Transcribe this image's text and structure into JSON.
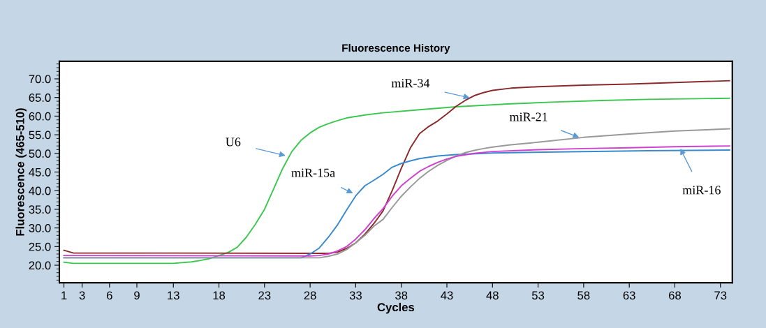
{
  "chart_data": {
    "type": "line",
    "title": "Fluorescence History",
    "xlabel": "Cycles",
    "ylabel": "Fluorescence (465-510)",
    "xlim": [
      0.5,
      74.3
    ],
    "ylim": [
      15.3,
      74.7
    ],
    "xticks": [
      1,
      3,
      6,
      9,
      13,
      18,
      23,
      28,
      33,
      38,
      43,
      48,
      53,
      58,
      63,
      68,
      73
    ],
    "yticks": [
      {
        "value": 20,
        "label": "20.0"
      },
      {
        "value": 25,
        "label": "25.0"
      },
      {
        "value": 30,
        "label": "30.0"
      },
      {
        "value": 35,
        "label": "35.0"
      },
      {
        "value": 40,
        "label": "40.0"
      },
      {
        "value": 45,
        "label": "45.0"
      },
      {
        "value": 50,
        "label": "50.0"
      },
      {
        "value": 55,
        "label": "55.0"
      },
      {
        "value": 60,
        "label": "60.0"
      },
      {
        "value": 65,
        "label": "65.0"
      },
      {
        "value": 70,
        "label": "70.0"
      }
    ],
    "grid": false,
    "series": [
      {
        "color": "#3cc850",
        "x": [
          1,
          2,
          13,
          15,
          16,
          17,
          18,
          19,
          20,
          21,
          22,
          23,
          24,
          25,
          26,
          27,
          28,
          29,
          30,
          31,
          32,
          34,
          36,
          40,
          44,
          50,
          55,
          60,
          65,
          74
        ],
        "values": [
          20.8,
          20.5,
          20.5,
          20.9,
          21.3,
          21.8,
          22.6,
          23.4,
          24.8,
          27.5,
          31,
          35,
          40.5,
          46,
          50.5,
          53.5,
          55.5,
          57,
          58,
          58.8,
          59.5,
          60.3,
          60.9,
          61.7,
          62.5,
          63.3,
          63.8,
          64.2,
          64.5,
          64.8
        ]
      },
      {
        "color": "#8b2a2a",
        "x": [
          1,
          2,
          30,
          31,
          32,
          33,
          34,
          35,
          36,
          37,
          38,
          39,
          40,
          41,
          42,
          43,
          44,
          45,
          46,
          47,
          48,
          50,
          53,
          58,
          63,
          68,
          74
        ],
        "values": [
          24,
          23.3,
          23.2,
          23.5,
          24.5,
          26,
          28.3,
          31.2,
          34.6,
          40,
          46,
          51.5,
          55.3,
          57.2,
          58.7,
          60.6,
          62.6,
          64.2,
          65.5,
          66.3,
          66.9,
          67.5,
          67.9,
          68.3,
          68.6,
          69,
          69.5
        ]
      },
      {
        "color": "#3a8ad0",
        "x": [
          1,
          27,
          28,
          29,
          30,
          31,
          32,
          33,
          34,
          35,
          36,
          37,
          38,
          39,
          40,
          42,
          44,
          48,
          55,
          65,
          74
        ],
        "values": [
          22,
          22,
          23,
          24.6,
          27.5,
          30.8,
          34.8,
          38.6,
          41.3,
          42.8,
          44.4,
          46.3,
          47.3,
          48,
          48.6,
          49.3,
          49.7,
          50.1,
          50.4,
          50.7,
          50.9
        ]
      },
      {
        "color": "#999999",
        "x": [
          1,
          29,
          30,
          31,
          32,
          33,
          34,
          35,
          36,
          37,
          38,
          39,
          40,
          41,
          42,
          43,
          44,
          45,
          46,
          47,
          48,
          50,
          53,
          58,
          63,
          68,
          74
        ],
        "values": [
          22,
          22,
          22.4,
          23,
          24.2,
          26,
          28,
          30.5,
          32.3,
          35.5,
          38.5,
          41,
          43.3,
          45.2,
          46.8,
          48.1,
          49.3,
          50.2,
          50.8,
          51.3,
          51.7,
          52.3,
          53,
          54.3,
          55.2,
          56,
          56.6
        ]
      },
      {
        "color": "#d040d0",
        "x": [
          1,
          28,
          29,
          30,
          31,
          32,
          33,
          34,
          35,
          36,
          37,
          38,
          39,
          40,
          41,
          42,
          43,
          44,
          46,
          48,
          53,
          58,
          63,
          68,
          74
        ],
        "values": [
          22.6,
          22.5,
          22.6,
          23,
          23.8,
          25,
          27,
          29.5,
          32.5,
          35.2,
          38.5,
          41.3,
          43.3,
          45.2,
          46.5,
          47.6,
          48.5,
          49.2,
          50,
          50.5,
          51,
          51.3,
          51.5,
          51.8,
          52
        ]
      }
    ],
    "annotations": [
      {
        "text": "U6",
        "x": 25.3,
        "y": 49.4
      },
      {
        "text": "miR-15a",
        "x": 32.7,
        "y": 39.3
      },
      {
        "text": "miR-34",
        "x": 45.5,
        "y": 64.9
      },
      {
        "text": "miR-21",
        "x": 57.5,
        "y": 54.3
      },
      {
        "text": "miR-16",
        "x": 68.6,
        "y": 51.3
      }
    ]
  }
}
